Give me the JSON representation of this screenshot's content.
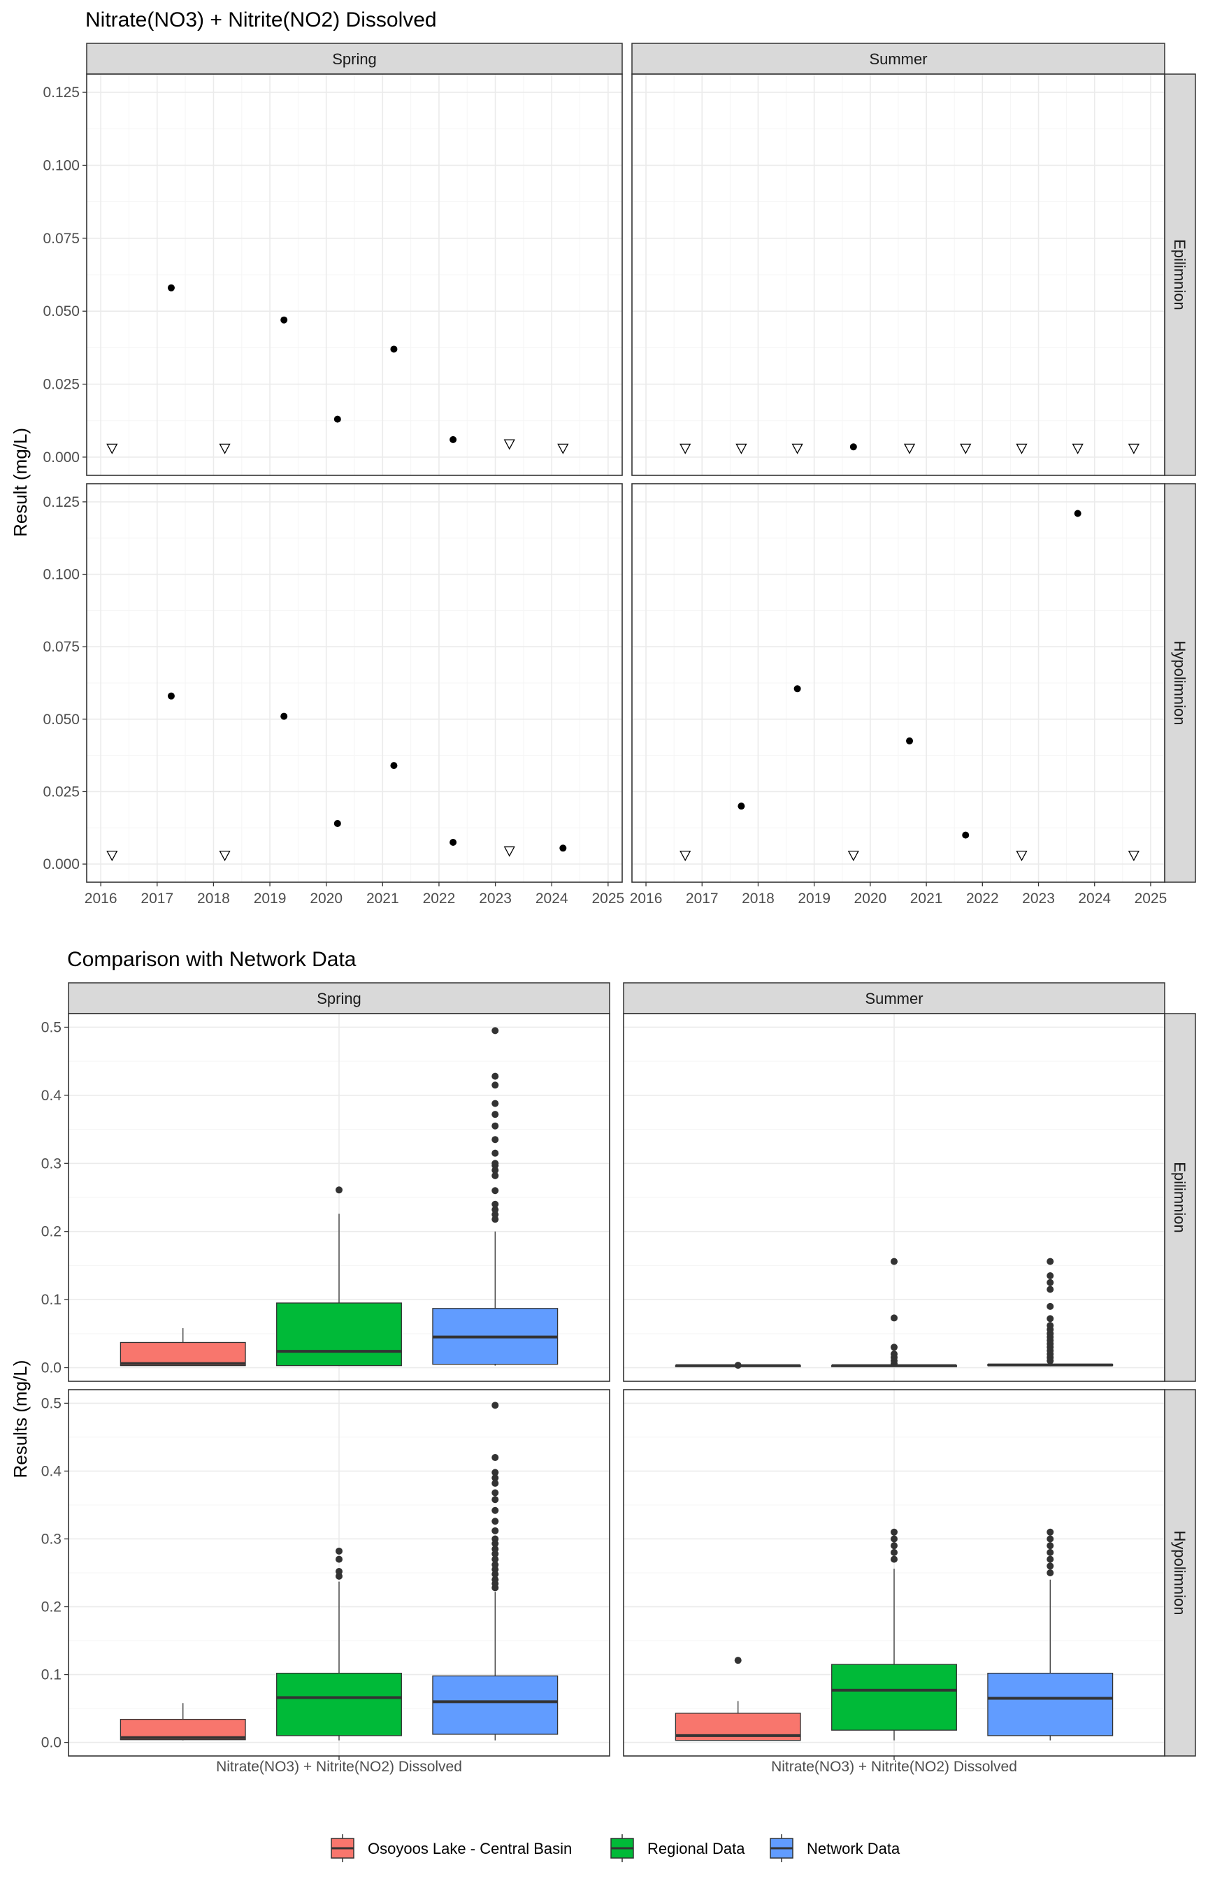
{
  "colors": {
    "panel_border": "#333333",
    "strip_fill": "#d9d9d9",
    "grid_major": "#ebebeb",
    "grid_minor": "#f5f5f5",
    "point": "#000000",
    "outlier": "#333333",
    "box_line": "#333333"
  },
  "chart_data": [
    {
      "type": "scatter",
      "title": "Nitrate(NO3) + Nitrite(NO2) Dissolved",
      "ylabel": "Result (mg/L)",
      "xlabel": "",
      "ylim": [
        0,
        0.125
      ],
      "xlim": [
        2015.75,
        2025.25
      ],
      "x_ticks": [
        2016,
        2017,
        2018,
        2019,
        2020,
        2021,
        2022,
        2023,
        2024,
        2025
      ],
      "y_ticks": [
        0,
        0.025,
        0.05,
        0.075,
        0.1,
        0.125
      ],
      "y_tick_labels": [
        "0.000",
        "0.025",
        "0.050",
        "0.075",
        "0.100",
        "0.125"
      ],
      "columns": [
        "Spring",
        "Summer"
      ],
      "rows": [
        "Epilimnion",
        "Hypolimnion"
      ],
      "grid": true,
      "marker_legend": {
        "detected": "filled circle",
        "below_detection": "open triangle"
      },
      "panels": [
        {
          "season": "Spring",
          "layer": "Epilimnion",
          "detected": [
            [
              2017.25,
              0.058
            ],
            [
              2019.25,
              0.047
            ],
            [
              2020.2,
              0.013
            ],
            [
              2021.2,
              0.037
            ],
            [
              2022.25,
              0.006
            ]
          ],
          "below_detection": [
            [
              2016.2,
              0.003
            ],
            [
              2018.2,
              0.003
            ],
            [
              2023.25,
              0.0045
            ],
            [
              2024.2,
              0.003
            ]
          ]
        },
        {
          "season": "Summer",
          "layer": "Epilimnion",
          "detected": [
            [
              2019.7,
              0.0035
            ]
          ],
          "below_detection": [
            [
              2016.7,
              0.003
            ],
            [
              2017.7,
              0.003
            ],
            [
              2018.7,
              0.003
            ],
            [
              2020.7,
              0.003
            ],
            [
              2021.7,
              0.003
            ],
            [
              2022.7,
              0.003
            ],
            [
              2023.7,
              0.003
            ],
            [
              2024.7,
              0.003
            ]
          ]
        },
        {
          "season": "Spring",
          "layer": "Hypolimnion",
          "detected": [
            [
              2017.25,
              0.058
            ],
            [
              2019.25,
              0.051
            ],
            [
              2020.2,
              0.014
            ],
            [
              2021.2,
              0.034
            ],
            [
              2022.25,
              0.0075
            ],
            [
              2024.2,
              0.0055
            ]
          ],
          "below_detection": [
            [
              2016.2,
              0.003
            ],
            [
              2018.2,
              0.003
            ],
            [
              2023.25,
              0.0045
            ]
          ]
        },
        {
          "season": "Summer",
          "layer": "Hypolimnion",
          "detected": [
            [
              2017.7,
              0.02
            ],
            [
              2018.7,
              0.0605
            ],
            [
              2020.7,
              0.0425
            ],
            [
              2021.7,
              0.01
            ],
            [
              2023.7,
              0.121
            ]
          ],
          "below_detection": [
            [
              2016.7,
              0.003
            ],
            [
              2019.7,
              0.003
            ],
            [
              2022.7,
              0.003
            ],
            [
              2024.7,
              0.003
            ]
          ]
        }
      ]
    },
    {
      "type": "box",
      "title": "Comparison with Network Data",
      "ylabel": "Results (mg/L)",
      "xlabel": "",
      "ylim": [
        -0.02,
        0.52
      ],
      "y_ticks": [
        0,
        0.1,
        0.2,
        0.3,
        0.4,
        0.5
      ],
      "y_tick_labels": [
        "0.0",
        "0.1",
        "0.2",
        "0.3",
        "0.4",
        "0.5"
      ],
      "category": "Nitrate(NO3) + Nitrite(NO2) Dissolved",
      "columns": [
        "Spring",
        "Summer"
      ],
      "rows": [
        "Epilimnion",
        "Hypolimnion"
      ],
      "grid": true,
      "legend_position": "bottom",
      "series": [
        {
          "name": "Osoyoos Lake - Central Basin",
          "color": "#F8766D"
        },
        {
          "name": "Regional Data",
          "color": "#00BA38"
        },
        {
          "name": "Network Data",
          "color": "#619CFF"
        }
      ],
      "panels": [
        {
          "season": "Spring",
          "layer": "Epilimnion",
          "boxes": [
            {
              "series": "Osoyoos Lake - Central Basin",
              "min": 0.003,
              "q1": 0.003,
              "median": 0.006,
              "q3": 0.037,
              "max": 0.058,
              "outliers": []
            },
            {
              "series": "Regional Data",
              "min": 0.003,
              "q1": 0.003,
              "median": 0.024,
              "q3": 0.095,
              "max": 0.226,
              "outliers": [
                0.261
              ]
            },
            {
              "series": "Network Data",
              "min": 0.003,
              "q1": 0.005,
              "median": 0.045,
              "q3": 0.087,
              "max": 0.2,
              "outliers": [
                0.218,
                0.225,
                0.232,
                0.24,
                0.26,
                0.282,
                0.29,
                0.297,
                0.3,
                0.315,
                0.335,
                0.355,
                0.372,
                0.388,
                0.415,
                0.428,
                0.495
              ]
            }
          ]
        },
        {
          "season": "Summer",
          "layer": "Epilimnion",
          "boxes": [
            {
              "series": "Osoyoos Lake - Central Basin",
              "min": 0.003,
              "q1": 0.003,
              "median": 0.003,
              "q3": 0.003,
              "max": 0.003,
              "outliers": [
                0.0035
              ]
            },
            {
              "series": "Regional Data",
              "min": 0.002,
              "q1": 0.002,
              "median": 0.003,
              "q3": 0.003,
              "max": 0.004,
              "outliers": [
                0.006,
                0.01,
                0.015,
                0.02,
                0.03,
                0.073,
                0.156
              ]
            },
            {
              "series": "Network Data",
              "min": 0.002,
              "q1": 0.003,
              "median": 0.004,
              "q3": 0.005,
              "max": 0.007,
              "outliers": [
                0.01,
                0.015,
                0.02,
                0.025,
                0.03,
                0.035,
                0.04,
                0.045,
                0.05,
                0.056,
                0.062,
                0.072,
                0.09,
                0.115,
                0.125,
                0.135,
                0.156
              ]
            }
          ]
        },
        {
          "season": "Spring",
          "layer": "Hypolimnion",
          "boxes": [
            {
              "series": "Osoyoos Lake - Central Basin",
              "min": 0.003,
              "q1": 0.004,
              "median": 0.007,
              "q3": 0.034,
              "max": 0.058,
              "outliers": []
            },
            {
              "series": "Regional Data",
              "min": 0.003,
              "q1": 0.01,
              "median": 0.066,
              "q3": 0.102,
              "max": 0.237,
              "outliers": [
                0.245,
                0.252,
                0.27,
                0.282
              ]
            },
            {
              "series": "Network Data",
              "min": 0.003,
              "q1": 0.012,
              "median": 0.06,
              "q3": 0.098,
              "max": 0.222,
              "outliers": [
                0.228,
                0.234,
                0.24,
                0.248,
                0.255,
                0.262,
                0.27,
                0.278,
                0.285,
                0.293,
                0.3,
                0.312,
                0.326,
                0.342,
                0.358,
                0.368,
                0.382,
                0.39,
                0.398,
                0.42,
                0.497
              ]
            }
          ]
        },
        {
          "season": "Summer",
          "layer": "Hypolimnion",
          "boxes": [
            {
              "series": "Osoyoos Lake - Central Basin",
              "min": 0.003,
              "q1": 0.003,
              "median": 0.01,
              "q3": 0.043,
              "max": 0.061,
              "outliers": [
                0.121
              ]
            },
            {
              "series": "Regional Data",
              "min": 0.003,
              "q1": 0.018,
              "median": 0.077,
              "q3": 0.115,
              "max": 0.256,
              "outliers": [
                0.27,
                0.28,
                0.29,
                0.3,
                0.31
              ]
            },
            {
              "series": "Network Data",
              "min": 0.003,
              "q1": 0.01,
              "median": 0.065,
              "q3": 0.102,
              "max": 0.24,
              "outliers": [
                0.25,
                0.26,
                0.27,
                0.28,
                0.29,
                0.3,
                0.31
              ]
            }
          ]
        }
      ]
    }
  ]
}
